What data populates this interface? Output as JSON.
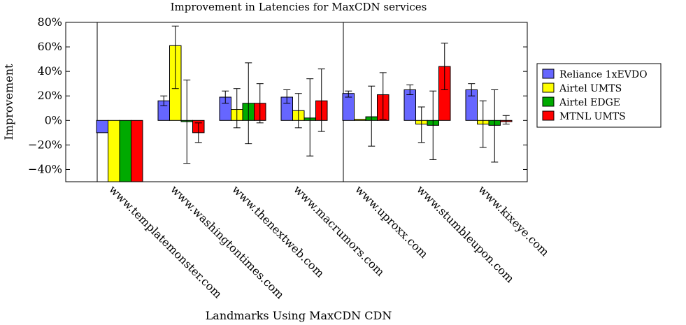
{
  "chart_data": {
    "type": "bar",
    "title": "Improvement in Latencies for MaxCDN services",
    "xlabel": "Landmarks Using MaxCDN CDN",
    "ylabel": "Improvement",
    "ylim": [
      -50,
      80
    ],
    "yticks": [
      -40,
      -20,
      0,
      20,
      40,
      60,
      80
    ],
    "ytick_labels": [
      "−40%",
      "−20%",
      "0%",
      "20%",
      "40%",
      "60%",
      "80%"
    ],
    "grid": false,
    "legend_position": "right",
    "categories": [
      "www.templatemonster.com",
      "www.washingtontimes.com",
      "www.thenextweb.com",
      "www.macrumors.com",
      "www.uproxx.com",
      "www.stumbleupon.com",
      "www.kixeye.com"
    ],
    "series": [
      {
        "name": "Reliance 1xEVDO",
        "color": "#6666ff",
        "values": [
          -10,
          16,
          19,
          19,
          22,
          25,
          25
        ],
        "err_low": [
          null,
          12,
          14,
          14,
          19,
          21,
          20
        ],
        "err_high": [
          null,
          20,
          24,
          25,
          24,
          29,
          30
        ]
      },
      {
        "name": "Airtel UMTS",
        "color": "#ffff00",
        "values": [
          -50,
          61,
          9,
          8,
          1,
          -3,
          -3
        ],
        "err_low": [
          null,
          26,
          -6,
          -6,
          null,
          -18,
          -22
        ],
        "err_high": [
          null,
          77,
          26,
          22,
          null,
          11,
          16
        ]
      },
      {
        "name": "Airtel EDGE",
        "color": "#00aa00",
        "values": [
          -50,
          -1,
          14,
          2,
          3,
          -4,
          -4
        ],
        "err_low": [
          null,
          -35,
          -19,
          -29,
          -21,
          -32,
          -34
        ],
        "err_high": [
          null,
          33,
          47,
          34,
          28,
          24,
          25
        ]
      },
      {
        "name": "MTNL UMTS",
        "color": "#ff0000",
        "values": [
          -50,
          -10,
          14,
          16,
          21,
          44,
          -1
        ],
        "err_low": [
          null,
          -18,
          -2,
          -9,
          1,
          25,
          -3
        ],
        "err_high": [
          null,
          -2,
          30,
          42,
          39,
          63,
          4
        ]
      }
    ]
  }
}
